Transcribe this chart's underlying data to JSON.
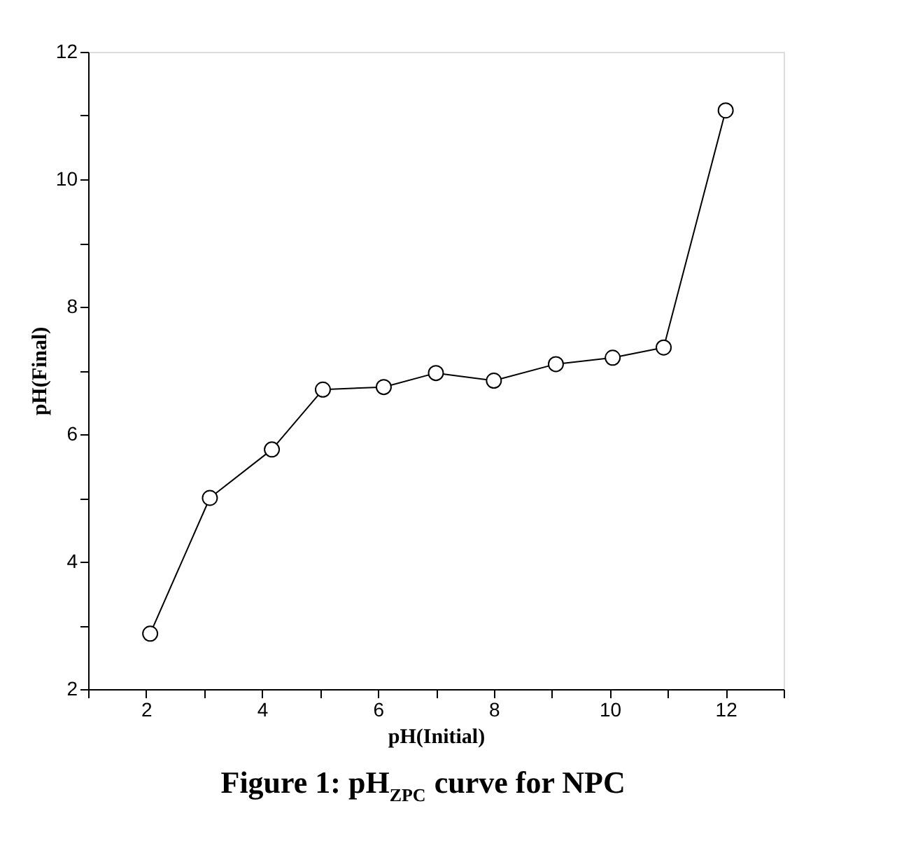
{
  "chart_data": {
    "type": "line",
    "title": "Figure 1: pH$_{ZPC}$ curve for NPC",
    "xlabel": "pH(Initial)",
    "ylabel": "pH(Final)",
    "x": [
      2.07,
      3.1,
      4.17,
      5.05,
      6.1,
      7.0,
      8.0,
      9.07,
      10.05,
      10.93,
      12.0
    ],
    "series": [
      {
        "color": "#000000",
        "values": [
          2.87,
          5.0,
          5.76,
          6.7,
          6.74,
          6.96,
          6.84,
          7.1,
          7.2,
          7.36,
          11.08
        ]
      }
    ],
    "xlim": [
      1,
      13
    ],
    "ylim": [
      2,
      12
    ],
    "xticks": [
      {
        "value": 1,
        "label": null
      },
      2,
      {
        "value": 3,
        "label": null
      },
      4,
      {
        "value": 5,
        "label": null
      },
      6,
      {
        "value": 7,
        "label": null
      },
      8,
      {
        "value": 9,
        "label": null
      },
      10,
      {
        "value": 11,
        "label": null
      },
      12,
      {
        "value": 13,
        "label": null
      }
    ],
    "yticks": [
      2,
      {
        "value": 3,
        "label": null
      },
      4,
      {
        "value": 5,
        "label": null
      },
      6,
      {
        "value": 7,
        "label": null
      },
      8,
      {
        "value": 9,
        "label": null
      },
      10,
      {
        "value": 11,
        "label": null
      },
      12
    ],
    "marker": "circle",
    "line_style": "solid",
    "grid": false
  }
}
